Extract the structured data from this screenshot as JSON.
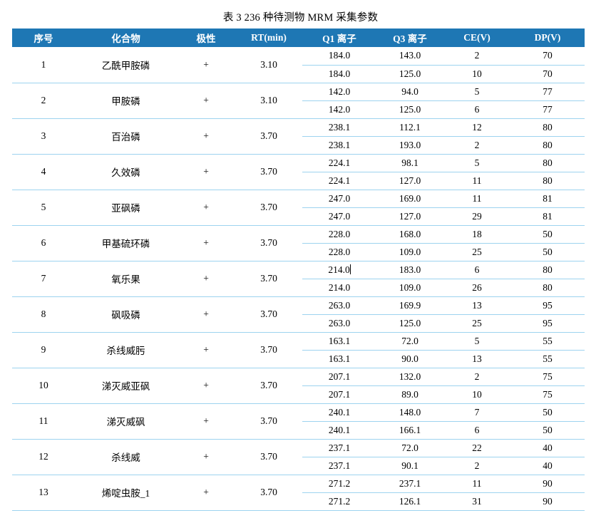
{
  "title": "表 3 236 种待测物 MRM 采集参数",
  "colors": {
    "header_bg": "#1e77b4",
    "header_text": "#ffffff",
    "row_divider": "#9dd3ef",
    "body_text": "#000000"
  },
  "table": {
    "headers": [
      "序号",
      "化合物",
      "极性",
      "RT(min)",
      "Q1 离子",
      "Q3 离子",
      "CE(V)",
      "DP(V)"
    ],
    "rows": [
      {
        "no": "1",
        "compound": "乙酰甲胺磷",
        "polarity": "+",
        "rt": "3.10",
        "transitions": [
          [
            "184.0",
            "143.0",
            "2",
            "70"
          ],
          [
            "184.0",
            "125.0",
            "10",
            "70"
          ]
        ]
      },
      {
        "no": "2",
        "compound": "甲胺磷",
        "polarity": "+",
        "rt": "3.10",
        "transitions": [
          [
            "142.0",
            "94.0",
            "5",
            "77"
          ],
          [
            "142.0",
            "125.0",
            "6",
            "77"
          ]
        ]
      },
      {
        "no": "3",
        "compound": "百治磷",
        "polarity": "+",
        "rt": "3.70",
        "transitions": [
          [
            "238.1",
            "112.1",
            "12",
            "80"
          ],
          [
            "238.1",
            "193.0",
            "2",
            "80"
          ]
        ]
      },
      {
        "no": "4",
        "compound": "久效磷",
        "polarity": "+",
        "rt": "3.70",
        "transitions": [
          [
            "224.1",
            "98.1",
            "5",
            "80"
          ],
          [
            "224.1",
            "127.0",
            "11",
            "80"
          ]
        ]
      },
      {
        "no": "5",
        "compound": "亚砜磷",
        "polarity": "+",
        "rt": "3.70",
        "transitions": [
          [
            "247.0",
            "169.0",
            "11",
            "81"
          ],
          [
            "247.0",
            "127.0",
            "29",
            "81"
          ]
        ]
      },
      {
        "no": "6",
        "compound": "甲基硫环磷",
        "polarity": "+",
        "rt": "3.70",
        "transitions": [
          [
            "228.0",
            "168.0",
            "18",
            "50"
          ],
          [
            "228.0",
            "109.0",
            "25",
            "50"
          ]
        ]
      },
      {
        "no": "7",
        "compound": "氧乐果",
        "polarity": "+",
        "rt": "3.70",
        "caret": true,
        "transitions": [
          [
            "214.0",
            "183.0",
            "6",
            "80"
          ],
          [
            "214.0",
            "109.0",
            "26",
            "80"
          ]
        ]
      },
      {
        "no": "8",
        "compound": "砜吸磷",
        "polarity": "+",
        "rt": "3.70",
        "transitions": [
          [
            "263.0",
            "169.9",
            "13",
            "95"
          ],
          [
            "263.0",
            "125.0",
            "25",
            "95"
          ]
        ]
      },
      {
        "no": "9",
        "compound": "杀线威肟",
        "polarity": "+",
        "rt": "3.70",
        "transitions": [
          [
            "163.1",
            "72.0",
            "5",
            "55"
          ],
          [
            "163.1",
            "90.0",
            "13",
            "55"
          ]
        ]
      },
      {
        "no": "10",
        "compound": "涕灭威亚砜",
        "polarity": "+",
        "rt": "3.70",
        "transitions": [
          [
            "207.1",
            "132.0",
            "2",
            "75"
          ],
          [
            "207.1",
            "89.0",
            "10",
            "75"
          ]
        ]
      },
      {
        "no": "11",
        "compound": "涕灭威砜",
        "polarity": "+",
        "rt": "3.70",
        "transitions": [
          [
            "240.1",
            "148.0",
            "7",
            "50"
          ],
          [
            "240.1",
            "166.1",
            "6",
            "50"
          ]
        ]
      },
      {
        "no": "12",
        "compound": "杀线威",
        "polarity": "+",
        "rt": "3.70",
        "transitions": [
          [
            "237.1",
            "72.0",
            "22",
            "40"
          ],
          [
            "237.1",
            "90.1",
            "2",
            "40"
          ]
        ]
      },
      {
        "no": "13",
        "compound": "烯啶虫胺_1",
        "polarity": "+",
        "rt": "3.70",
        "transitions": [
          [
            "271.2",
            "237.1",
            "11",
            "90"
          ],
          [
            "271.2",
            "126.1",
            "31",
            "90"
          ]
        ]
      }
    ]
  }
}
